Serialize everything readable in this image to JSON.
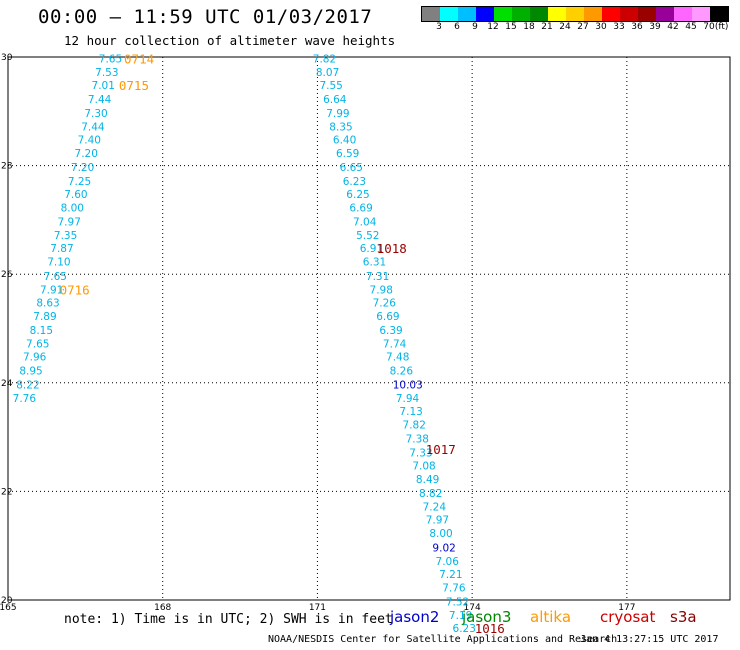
{
  "header": {
    "title": "00:00 – 11:59 UTC 01/03/2017",
    "subtitle": "12 hour collection of altimeter wave heights"
  },
  "legend": {
    "colors": [
      "#808080",
      "#00ffff",
      "#00bfff",
      "#0000ff",
      "#00e000",
      "#00b000",
      "#008800",
      "#ffff00",
      "#ffd000",
      "#ff9900",
      "#ff0000",
      "#cc0000",
      "#990000",
      "#990099",
      "#ff66ff",
      "#ff99ff",
      "#000000"
    ],
    "labels": [
      "3",
      "6",
      "9",
      "12",
      "15",
      "18",
      "21",
      "24",
      "27",
      "30",
      "33",
      "36",
      "39",
      "42",
      "45",
      "70",
      "(ft)"
    ]
  },
  "footer": {
    "note": "note: 1) Time is in UTC; 2) SWH is in feet",
    "satellites": [
      {
        "name": "jason2",
        "color": "#0000cc"
      },
      {
        "name": "jason3",
        "color": "#008800"
      },
      {
        "name": "altika",
        "color": "#ff9900"
      },
      {
        "name": "cryosat",
        "color": "#cc0000"
      },
      {
        "name": "s3a",
        "color": "#880000"
      }
    ],
    "credit": "NOAA/NESDIS Center for Satellite Applications and Research",
    "timestamp": "Jan  4 13:27:15 UTC 2017"
  },
  "chart_data": {
    "type": "scatter",
    "xlim": [
      165,
      179
    ],
    "ylim": [
      20,
      30
    ],
    "x_ticks": [
      "165",
      "168",
      "171",
      "174",
      "177"
    ],
    "y_ticks": [
      "20",
      "22",
      "24",
      "26",
      "28",
      "30"
    ],
    "grid": true,
    "colors": {
      "light": "#00b4e6",
      "dark": "#0000cc",
      "altika": "#ff9900",
      "maroon": "#990000"
    },
    "tracks": [
      {
        "id": "altika-west",
        "values": [
          {
            "x": 166.76,
            "y": 29.97,
            "v": "7.65",
            "c": "light"
          },
          {
            "x": 166.69,
            "y": 29.72,
            "v": "7.53",
            "c": "light"
          },
          {
            "x": 166.62,
            "y": 29.48,
            "v": "7.01",
            "c": "light"
          },
          {
            "x": 166.55,
            "y": 29.23,
            "v": "7.44",
            "c": "light"
          },
          {
            "x": 166.48,
            "y": 28.97,
            "v": "7.30",
            "c": "light"
          },
          {
            "x": 166.42,
            "y": 28.72,
            "v": "7.44",
            "c": "light"
          },
          {
            "x": 166.35,
            "y": 28.48,
            "v": "7.40",
            "c": "light"
          },
          {
            "x": 166.29,
            "y": 28.23,
            "v": "7.20",
            "c": "light"
          },
          {
            "x": 166.22,
            "y": 27.97,
            "v": "7.20",
            "c": "light"
          },
          {
            "x": 166.16,
            "y": 27.72,
            "v": "7.25",
            "c": "light"
          },
          {
            "x": 166.09,
            "y": 27.48,
            "v": "7.60",
            "c": "light"
          },
          {
            "x": 166.02,
            "y": 27.23,
            "v": "8.00",
            "c": "light"
          },
          {
            "x": 165.96,
            "y": 26.97,
            "v": "7.97",
            "c": "light"
          },
          {
            "x": 165.89,
            "y": 26.72,
            "v": "7.35",
            "c": "light"
          },
          {
            "x": 165.82,
            "y": 26.48,
            "v": "7.87",
            "c": "light"
          },
          {
            "x": 165.76,
            "y": 26.23,
            "v": "7.10",
            "c": "light"
          },
          {
            "x": 165.69,
            "y": 25.97,
            "v": "7.65",
            "c": "light"
          },
          {
            "x": 165.62,
            "y": 25.72,
            "v": "7.91",
            "c": "light"
          },
          {
            "x": 165.55,
            "y": 25.48,
            "v": "8.63",
            "c": "light"
          },
          {
            "x": 165.49,
            "y": 25.23,
            "v": "7.89",
            "c": "light"
          },
          {
            "x": 165.42,
            "y": 24.97,
            "v": "8.15",
            "c": "light"
          },
          {
            "x": 165.35,
            "y": 24.72,
            "v": "7.65",
            "c": "light"
          },
          {
            "x": 165.29,
            "y": 24.48,
            "v": "7.96",
            "c": "light"
          },
          {
            "x": 165.22,
            "y": 24.23,
            "v": "8.95",
            "c": "light"
          },
          {
            "x": 165.16,
            "y": 23.97,
            "v": "8.22",
            "c": "light"
          },
          {
            "x": 165.09,
            "y": 23.72,
            "v": "7.76",
            "c": "light"
          }
        ]
      },
      {
        "id": "altika-east",
        "values": [
          {
            "x": 170.91,
            "y": 29.97,
            "v": "7.82",
            "c": "light"
          },
          {
            "x": 170.97,
            "y": 29.72,
            "v": "8.07",
            "c": "light"
          },
          {
            "x": 171.04,
            "y": 29.48,
            "v": "7.55",
            "c": "light"
          },
          {
            "x": 171.11,
            "y": 29.23,
            "v": "6.64",
            "c": "light"
          },
          {
            "x": 171.17,
            "y": 28.97,
            "v": "7.99",
            "c": "light"
          },
          {
            "x": 171.23,
            "y": 28.72,
            "v": "8.35",
            "c": "light"
          },
          {
            "x": 171.3,
            "y": 28.48,
            "v": "6.40",
            "c": "light"
          },
          {
            "x": 171.36,
            "y": 28.23,
            "v": "6.59",
            "c": "light"
          },
          {
            "x": 171.43,
            "y": 27.97,
            "v": "6.65",
            "c": "light"
          },
          {
            "x": 171.49,
            "y": 27.72,
            "v": "6.23",
            "c": "light"
          },
          {
            "x": 171.56,
            "y": 27.48,
            "v": "6.25",
            "c": "light"
          },
          {
            "x": 171.62,
            "y": 27.23,
            "v": "6.69",
            "c": "light"
          },
          {
            "x": 171.69,
            "y": 26.97,
            "v": "7.04",
            "c": "light"
          },
          {
            "x": 171.75,
            "y": 26.72,
            "v": "5.52",
            "c": "light"
          },
          {
            "x": 171.82,
            "y": 26.48,
            "v": "6.91",
            "c": "light"
          },
          {
            "x": 171.88,
            "y": 26.23,
            "v": "6.31",
            "c": "light"
          },
          {
            "x": 171.94,
            "y": 25.97,
            "v": "7.31",
            "c": "light"
          },
          {
            "x": 172.01,
            "y": 25.72,
            "v": "7.98",
            "c": "light"
          },
          {
            "x": 172.07,
            "y": 25.48,
            "v": "7.26",
            "c": "light"
          },
          {
            "x": 172.14,
            "y": 25.23,
            "v": "6.69",
            "c": "light"
          },
          {
            "x": 172.2,
            "y": 24.97,
            "v": "6.39",
            "c": "light"
          },
          {
            "x": 172.27,
            "y": 24.72,
            "v": "7.74",
            "c": "light"
          },
          {
            "x": 172.33,
            "y": 24.48,
            "v": "7.48",
            "c": "light"
          },
          {
            "x": 172.4,
            "y": 24.23,
            "v": "8.26",
            "c": "light"
          },
          {
            "x": 172.46,
            "y": 23.97,
            "v": "10.03",
            "c": "dark"
          },
          {
            "x": 172.52,
            "y": 23.72,
            "v": "7.94",
            "c": "light"
          },
          {
            "x": 172.59,
            "y": 23.48,
            "v": "7.13",
            "c": "light"
          },
          {
            "x": 172.65,
            "y": 23.23,
            "v": "7.82",
            "c": "light"
          },
          {
            "x": 172.71,
            "y": 22.97,
            "v": "7.38",
            "c": "light"
          },
          {
            "x": 172.78,
            "y": 22.72,
            "v": "7.33",
            "c": "light"
          },
          {
            "x": 172.84,
            "y": 22.48,
            "v": "7.08",
            "c": "light"
          },
          {
            "x": 172.91,
            "y": 22.23,
            "v": "8.49",
            "c": "light"
          },
          {
            "x": 172.97,
            "y": 21.97,
            "v": "8.82",
            "c": "light"
          },
          {
            "x": 173.04,
            "y": 21.72,
            "v": "7.24",
            "c": "light"
          },
          {
            "x": 173.1,
            "y": 21.48,
            "v": "7.97",
            "c": "light"
          },
          {
            "x": 173.17,
            "y": 21.23,
            "v": "8.00",
            "c": "light"
          },
          {
            "x": 173.23,
            "y": 20.97,
            "v": "9.02",
            "c": "dark"
          },
          {
            "x": 173.29,
            "y": 20.72,
            "v": "7.06",
            "c": "light"
          },
          {
            "x": 173.36,
            "y": 20.48,
            "v": "7.21",
            "c": "light"
          },
          {
            "x": 173.42,
            "y": 20.23,
            "v": "7.76",
            "c": "light"
          },
          {
            "x": 173.49,
            "y": 19.97,
            "v": "7.52",
            "c": "light"
          },
          {
            "x": 173.55,
            "y": 19.72,
            "v": "7.19",
            "c": "light"
          },
          {
            "x": 173.62,
            "y": 19.48,
            "v": "6.23",
            "c": "light"
          }
        ]
      }
    ],
    "time_labels": [
      {
        "x": 167.25,
        "y": 29.97,
        "v": "0714",
        "c": "altika"
      },
      {
        "x": 167.15,
        "y": 29.48,
        "v": "0715",
        "c": "altika"
      },
      {
        "x": 166.0,
        "y": 25.72,
        "v": "0716",
        "c": "altika"
      },
      {
        "x": 172.15,
        "y": 26.48,
        "v": "1018",
        "c": "maroon"
      },
      {
        "x": 173.1,
        "y": 22.78,
        "v": "1017",
        "c": "maroon"
      },
      {
        "x": 174.05,
        "y": 19.48,
        "v": "1016",
        "c": "maroon"
      }
    ]
  }
}
